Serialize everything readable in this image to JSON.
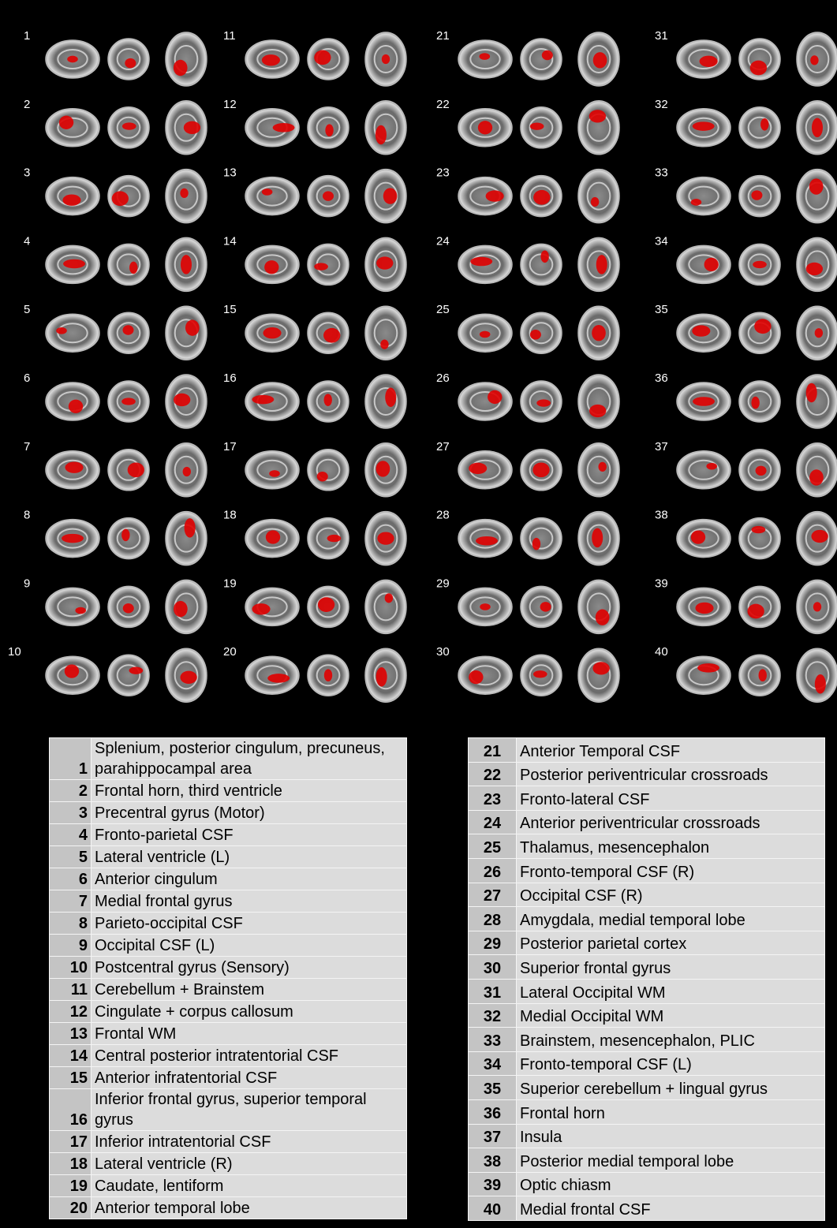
{
  "components": [
    {
      "id": "1",
      "label": "Splenium, posterior cingulum, precuneus, parahippocampal area"
    },
    {
      "id": "2",
      "label": "Frontal horn, third ventricle"
    },
    {
      "id": "3",
      "label": "Precentral gyrus (Motor)"
    },
    {
      "id": "4",
      "label": "Fronto-parietal CSF"
    },
    {
      "id": "5",
      "label": "Lateral ventricle (L)"
    },
    {
      "id": "6",
      "label": "Anterior cingulum"
    },
    {
      "id": "7",
      "label": "Medial frontal gyrus"
    },
    {
      "id": "8",
      "label": "Parieto-occipital CSF"
    },
    {
      "id": "9",
      "label": "Occipital CSF (L)"
    },
    {
      "id": "10",
      "label": "Postcentral gyrus (Sensory)"
    },
    {
      "id": "11",
      "label": "Cerebellum + Brainstem"
    },
    {
      "id": "12",
      "label": "Cingulate + corpus callosum"
    },
    {
      "id": "13",
      "label": "Frontal WM"
    },
    {
      "id": "14",
      "label": "Central posterior intratentorial CSF"
    },
    {
      "id": "15",
      "label": "Anterior infratentorial CSF"
    },
    {
      "id": "16",
      "label": "Inferior frontal gyrus, superior temporal gyrus"
    },
    {
      "id": "17",
      "label": "Inferior intratentorial CSF"
    },
    {
      "id": "18",
      "label": "Lateral ventricle (R)"
    },
    {
      "id": "19",
      "label": "Caudate, lentiform"
    },
    {
      "id": "20",
      "label": "Anterior temporal lobe"
    },
    {
      "id": "21",
      "label": "Anterior Temporal CSF"
    },
    {
      "id": "22",
      "label": "Posterior periventricular crossroads"
    },
    {
      "id": "23",
      "label": "Fronto-lateral CSF"
    },
    {
      "id": "24",
      "label": "Anterior periventricular crossroads"
    },
    {
      "id": "25",
      "label": "Thalamus, mesencephalon"
    },
    {
      "id": "26",
      "label": "Fronto-temporal CSF (R)"
    },
    {
      "id": "27",
      "label": "Occipital CSF (R)"
    },
    {
      "id": "28",
      "label": "Amygdala, medial temporal lobe"
    },
    {
      "id": "29",
      "label": "Posterior parietal cortex"
    },
    {
      "id": "30",
      "label": "Superior frontal gyrus"
    },
    {
      "id": "31",
      "label": "Lateral Occipital WM"
    },
    {
      "id": "32",
      "label": "Medial Occipital WM"
    },
    {
      "id": "33",
      "label": "Brainstem, mesencephalon, PLIC"
    },
    {
      "id": "34",
      "label": "Fronto-temporal CSF (L)"
    },
    {
      "id": "35",
      "label": "Superior cerebellum + lingual gyrus"
    },
    {
      "id": "36",
      "label": "Frontal horn"
    },
    {
      "id": "37",
      "label": "Insula"
    },
    {
      "id": "38",
      "label": "Posterior medial temporal lobe"
    },
    {
      "id": "39",
      "label": "Optic chiasm"
    },
    {
      "id": "40",
      "label": "Medial frontal CSF"
    }
  ]
}
